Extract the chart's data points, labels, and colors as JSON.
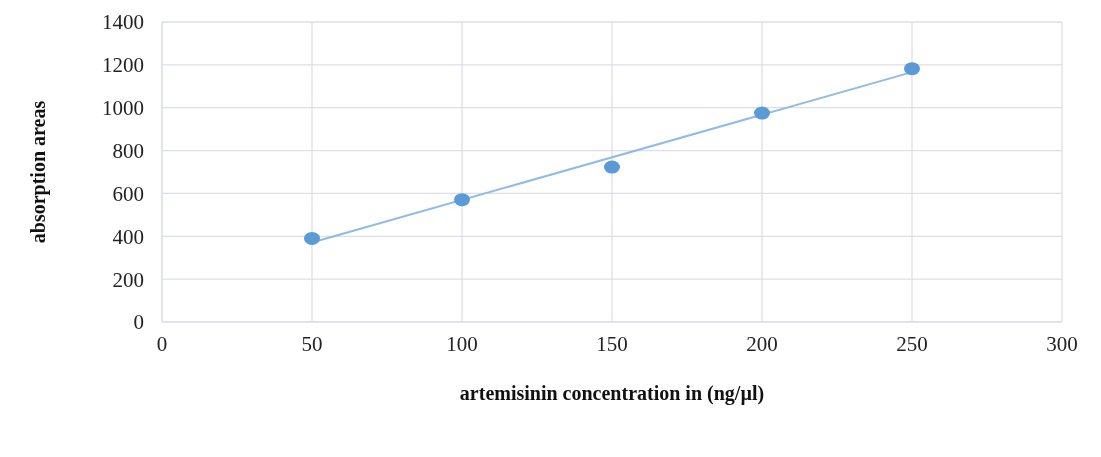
{
  "chart_data": {
    "type": "scatter",
    "xlabel": "artemisinin concentration in (ng/µl)",
    "ylabel": "absorption areas",
    "series": [
      {
        "color": "#5b9bd5",
        "marker": "circle",
        "x": [
          50,
          100,
          150,
          200,
          250
        ],
        "values": [
          390,
          571,
          723,
          975,
          1182
        ]
      },
      {
        "type": "line",
        "color": "#8fbbe6",
        "marker": "none",
        "x": [
          50,
          250
        ],
        "values": [
          371,
          1166
        ]
      }
    ],
    "xlim": [
      0,
      300
    ],
    "xticks": [
      0,
      50,
      100,
      150,
      200,
      250,
      300
    ],
    "ylim": [
      0,
      1400
    ],
    "yticks": [
      0,
      200,
      400,
      600,
      800,
      1000,
      1200,
      1400
    ],
    "grid": true,
    "legend": false
  }
}
